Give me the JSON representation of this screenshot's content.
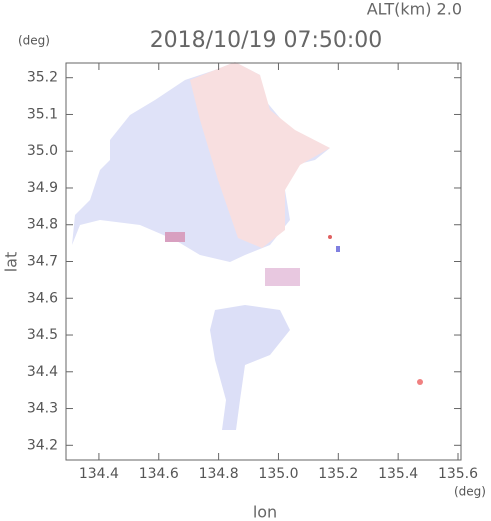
{
  "chart_data": {
    "type": "map",
    "header": "ALT(km) 2.0",
    "title": "2018/10/19 07:50:00",
    "y_unit": "(deg)",
    "x_unit": "(deg)",
    "xlabel": "lon",
    "ylabel": "lat",
    "xlim": [
      134.29,
      135.61
    ],
    "ylim": [
      34.16,
      35.24
    ],
    "xticks": [
      134.4,
      134.6,
      134.8,
      {
        "value": 135,
        "label": "135.0"
      },
      135.2,
      135.4,
      135.6
    ],
    "yticks": [
      34.2,
      34.3,
      34.4,
      34.5,
      34.6,
      34.7,
      34.8,
      34.9,
      {
        "value": 35,
        "label": "35.0"
      },
      35.1,
      35.2
    ]
  }
}
